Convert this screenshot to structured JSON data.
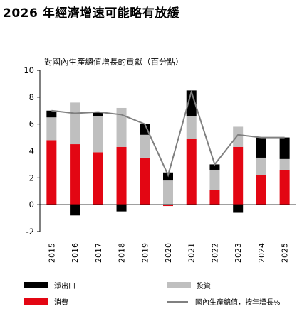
{
  "page_title": "2026 年經濟增速可能略有放緩",
  "colors": {
    "consumption": "#e30613",
    "investment": "#bfbfbf",
    "net_exports": "#000000",
    "gdp_line": "#808080"
  },
  "chart_data": {
    "type": "bar",
    "stacked": true,
    "title": "對國內生產總值增長的貢獻（百分點）",
    "categories": [
      "2015",
      "2016",
      "2017",
      "2018",
      "2019",
      "2020",
      "2021",
      "2022",
      "2023",
      "2024",
      "2025"
    ],
    "ylim": [
      -2,
      10
    ],
    "yticks": [
      -2,
      0,
      2,
      4,
      6,
      8,
      10
    ],
    "grid": false,
    "legend_position": "bottom",
    "series": [
      {
        "name": "消費",
        "type": "bar",
        "color": "#e30613",
        "values": [
          4.8,
          4.5,
          3.9,
          4.3,
          3.5,
          -0.1,
          4.9,
          1.1,
          4.3,
          2.2,
          2.6
        ]
      },
      {
        "name": "投資",
        "type": "bar",
        "color": "#bfbfbf",
        "values": [
          1.7,
          3.1,
          2.7,
          2.9,
          1.7,
          1.8,
          1.7,
          1.5,
          1.5,
          1.3,
          0.8
        ]
      },
      {
        "name": "淨出口",
        "type": "bar",
        "color": "#000000",
        "values": [
          0.5,
          -0.8,
          0.3,
          -0.5,
          0.8,
          0.6,
          1.9,
          0.4,
          -0.6,
          1.5,
          1.6
        ]
      },
      {
        "name": "國內生產總值，按年增長%",
        "type": "line",
        "color": "#808080",
        "values": [
          7.0,
          6.8,
          6.9,
          6.7,
          6.0,
          2.2,
          8.4,
          3.0,
          5.2,
          5.0,
          5.0
        ]
      }
    ]
  }
}
